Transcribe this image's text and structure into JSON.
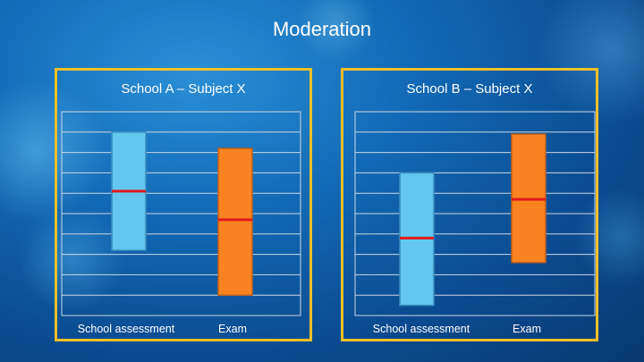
{
  "title": "Moderation",
  "colors": {
    "frame": "#f2c027",
    "school_assessment_fill": "#63c7f0",
    "exam_fill": "#f98320",
    "median_line": "#e01b1b",
    "grid": "#c9d7e6"
  },
  "chart_data": [
    {
      "type": "bar",
      "title": "School A – Subject X",
      "categories": [
        "School assessment",
        "Exam"
      ],
      "ylim": [
        0,
        10
      ],
      "grid": true,
      "gridlines": 10,
      "series": [
        {
          "values": [
            {
              "low": 3.2,
              "high": 9.0,
              "median": 6.1
            },
            {
              "low": 1.0,
              "high": 8.2,
              "median": 4.7
            }
          ]
        }
      ]
    },
    {
      "type": "bar",
      "title": "School B – Subject X",
      "categories": [
        "School assessment",
        "Exam"
      ],
      "ylim": [
        0,
        10
      ],
      "grid": true,
      "gridlines": 10,
      "series": [
        {
          "values": [
            {
              "low": 0.5,
              "high": 7.0,
              "median": 3.8
            },
            {
              "low": 2.6,
              "high": 8.9,
              "median": 5.7
            }
          ]
        }
      ]
    }
  ]
}
